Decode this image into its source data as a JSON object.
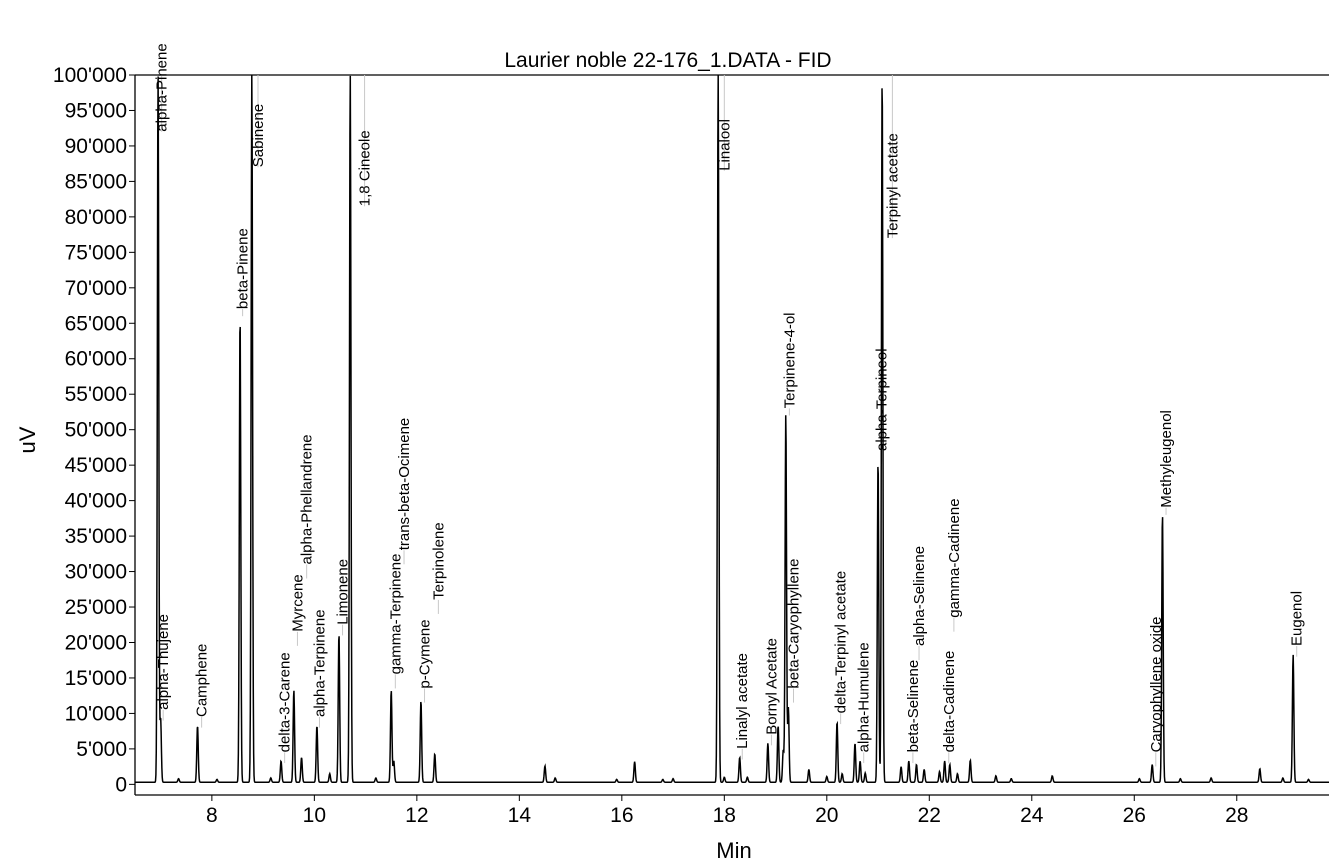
{
  "chart_data": {
    "type": "line",
    "title": "Laurier noble 22-176_1.DATA - FID",
    "xlabel": "Min",
    "ylabel": "uV",
    "xlim": [
      6.5,
      29.8
    ],
    "ylim": [
      -1500,
      100000
    ],
    "x_ticks": [
      8,
      10,
      12,
      14,
      16,
      18,
      20,
      22,
      24,
      26,
      28
    ],
    "x_tick_labels": [
      "8",
      "10",
      "12",
      "14",
      "16",
      "18",
      "20",
      "22",
      "24",
      "26",
      "28"
    ],
    "y_ticks": [
      0,
      5000,
      10000,
      15000,
      20000,
      25000,
      30000,
      35000,
      40000,
      45000,
      50000,
      55000,
      60000,
      65000,
      70000,
      75000,
      80000,
      85000,
      90000,
      95000,
      100000
    ],
    "y_tick_labels": [
      "0",
      "5'000",
      "10'000",
      "15'000",
      "20'000",
      "25'000",
      "30'000",
      "35'000",
      "40'000",
      "45'000",
      "50'000",
      "55'000",
      "60'000",
      "65'000",
      "70'000",
      "75'000",
      "80'000",
      "85'000",
      "90'000",
      "95'000",
      "100'000"
    ],
    "grid": false,
    "baseline": 300,
    "peaks": [
      {
        "rt": 6.95,
        "height": 100000,
        "label": "alpha-Pinene",
        "label_x": 7.02,
        "label_y": 92000
      },
      {
        "rt": 7.0,
        "height": 9000,
        "label": "alpha-Thujene",
        "label_x": 7.05,
        "label_y": 10500
      },
      {
        "rt": 7.72,
        "height": 8000,
        "label": "Camphene",
        "label_x": 7.8,
        "label_y": 9500
      },
      {
        "rt": 8.55,
        "height": 66000,
        "label": "beta-Pinene",
        "label_x": 8.6,
        "label_y": 67000
      },
      {
        "rt": 8.78,
        "height": 100000,
        "label": "Sabinene",
        "label_x": 8.9,
        "label_y": 87000
      },
      {
        "rt": 9.35,
        "height": 3000,
        "label": "delta-3-Carene",
        "label_x": 9.42,
        "label_y": 4500
      },
      {
        "rt": 9.6,
        "height": 13000,
        "label": "Myrcene",
        "label_x": 9.67,
        "label_y": 21500
      },
      {
        "rt": 9.75,
        "height": 3500,
        "label": "alpha-Phellandrene",
        "label_x": 9.85,
        "label_y": 31000
      },
      {
        "rt": 10.05,
        "height": 8000,
        "label": "alpha-Terpinene",
        "label_x": 10.1,
        "label_y": 9500
      },
      {
        "rt": 10.48,
        "height": 21000,
        "label": "Limonene",
        "label_x": 10.55,
        "label_y": 22500
      },
      {
        "rt": 10.7,
        "height": 100000,
        "label": "1,8 Cineole",
        "label_x": 10.98,
        "label_y": 81500
      },
      {
        "rt": 11.5,
        "height": 13000,
        "label": "gamma-Terpinene",
        "label_x": 11.58,
        "label_y": 15500
      },
      {
        "rt": 11.55,
        "height": 3000,
        "label": "trans-beta-Ocimene",
        "label_x": 11.75,
        "label_y": 33000
      },
      {
        "rt": 12.08,
        "height": 11500,
        "label": "p-Cymene",
        "label_x": 12.15,
        "label_y": 13500
      },
      {
        "rt": 12.35,
        "height": 4000,
        "label": "Terpinolene",
        "label_x": 12.42,
        "label_y": 26000
      },
      {
        "rt": 17.88,
        "height": 100000,
        "label": "Linalool",
        "label_x": 18.0,
        "label_y": 86500
      },
      {
        "rt": 18.3,
        "height": 3500,
        "label": "Linalyl acetate",
        "label_x": 18.35,
        "label_y": 5000
      },
      {
        "rt": 18.85,
        "height": 5500,
        "label": "Bornyl Acetate",
        "label_x": 18.92,
        "label_y": 7000
      },
      {
        "rt": 19.2,
        "height": 52000,
        "label": "Terpinene-4-ol",
        "label_x": 19.27,
        "label_y": 53000
      },
      {
        "rt": 19.25,
        "height": 10500,
        "label": "beta-Caryophyllene",
        "label_x": 19.35,
        "label_y": 13500
      },
      {
        "rt": 20.2,
        "height": 8500,
        "label": "delta-Terpinyl acetate",
        "label_x": 20.27,
        "label_y": 10000
      },
      {
        "rt": 20.65,
        "height": 3000,
        "label": "alpha-Humulene",
        "label_x": 20.72,
        "label_y": 4500
      },
      {
        "rt": 21.0,
        "height": 45500,
        "label": "alpha-Terpineol",
        "label_x": 21.07,
        "label_y": 47000
      },
      {
        "rt": 21.08,
        "height": 100000,
        "label": "Terpinyl acetate",
        "label_x": 21.28,
        "label_y": 77000
      },
      {
        "rt": 21.6,
        "height": 3000,
        "label": "beta-Selinene",
        "label_x": 21.68,
        "label_y": 4500
      },
      {
        "rt": 21.75,
        "height": 2500,
        "label": "alpha-Selinene",
        "label_x": 21.8,
        "label_y": 19500
      },
      {
        "rt": 22.3,
        "height": 3000,
        "label": "delta-Cadinene",
        "label_x": 22.38,
        "label_y": 4500
      },
      {
        "rt": 22.4,
        "height": 2500,
        "label": "gamma-Cadinene",
        "label_x": 22.48,
        "label_y": 23500
      },
      {
        "rt": 26.35,
        "height": 2500,
        "label": "Caryophyllene oxide",
        "label_x": 26.42,
        "label_y": 4500
      },
      {
        "rt": 26.55,
        "height": 38000,
        "label": "Methyleugenol",
        "label_x": 26.62,
        "label_y": 39000
      },
      {
        "rt": 29.1,
        "height": 18000,
        "label": "Eugenol",
        "label_x": 29.17,
        "label_y": 19500
      }
    ],
    "minor_peaks": [
      {
        "rt": 7.35,
        "height": 500
      },
      {
        "rt": 8.1,
        "height": 400
      },
      {
        "rt": 9.15,
        "height": 600
      },
      {
        "rt": 10.3,
        "height": 1200
      },
      {
        "rt": 11.2,
        "height": 600
      },
      {
        "rt": 14.5,
        "height": 2300
      },
      {
        "rt": 14.7,
        "height": 600
      },
      {
        "rt": 15.9,
        "height": 400
      },
      {
        "rt": 16.25,
        "height": 2900
      },
      {
        "rt": 16.8,
        "height": 400
      },
      {
        "rt": 17.0,
        "height": 500
      },
      {
        "rt": 18.0,
        "height": 700
      },
      {
        "rt": 18.45,
        "height": 700
      },
      {
        "rt": 19.05,
        "height": 8000
      },
      {
        "rt": 19.15,
        "height": 4500
      },
      {
        "rt": 19.65,
        "height": 1800
      },
      {
        "rt": 20.0,
        "height": 800
      },
      {
        "rt": 20.3,
        "height": 1200
      },
      {
        "rt": 20.55,
        "height": 5500
      },
      {
        "rt": 20.75,
        "height": 1300
      },
      {
        "rt": 21.45,
        "height": 2200
      },
      {
        "rt": 21.9,
        "height": 1800
      },
      {
        "rt": 22.2,
        "height": 1500
      },
      {
        "rt": 22.55,
        "height": 1200
      },
      {
        "rt": 22.8,
        "height": 3100
      },
      {
        "rt": 23.3,
        "height": 900
      },
      {
        "rt": 23.6,
        "height": 500
      },
      {
        "rt": 24.4,
        "height": 900
      },
      {
        "rt": 26.1,
        "height": 500
      },
      {
        "rt": 26.9,
        "height": 500
      },
      {
        "rt": 27.5,
        "height": 600
      },
      {
        "rt": 28.45,
        "height": 1900
      },
      {
        "rt": 28.9,
        "height": 600
      },
      {
        "rt": 29.4,
        "height": 400
      }
    ]
  }
}
